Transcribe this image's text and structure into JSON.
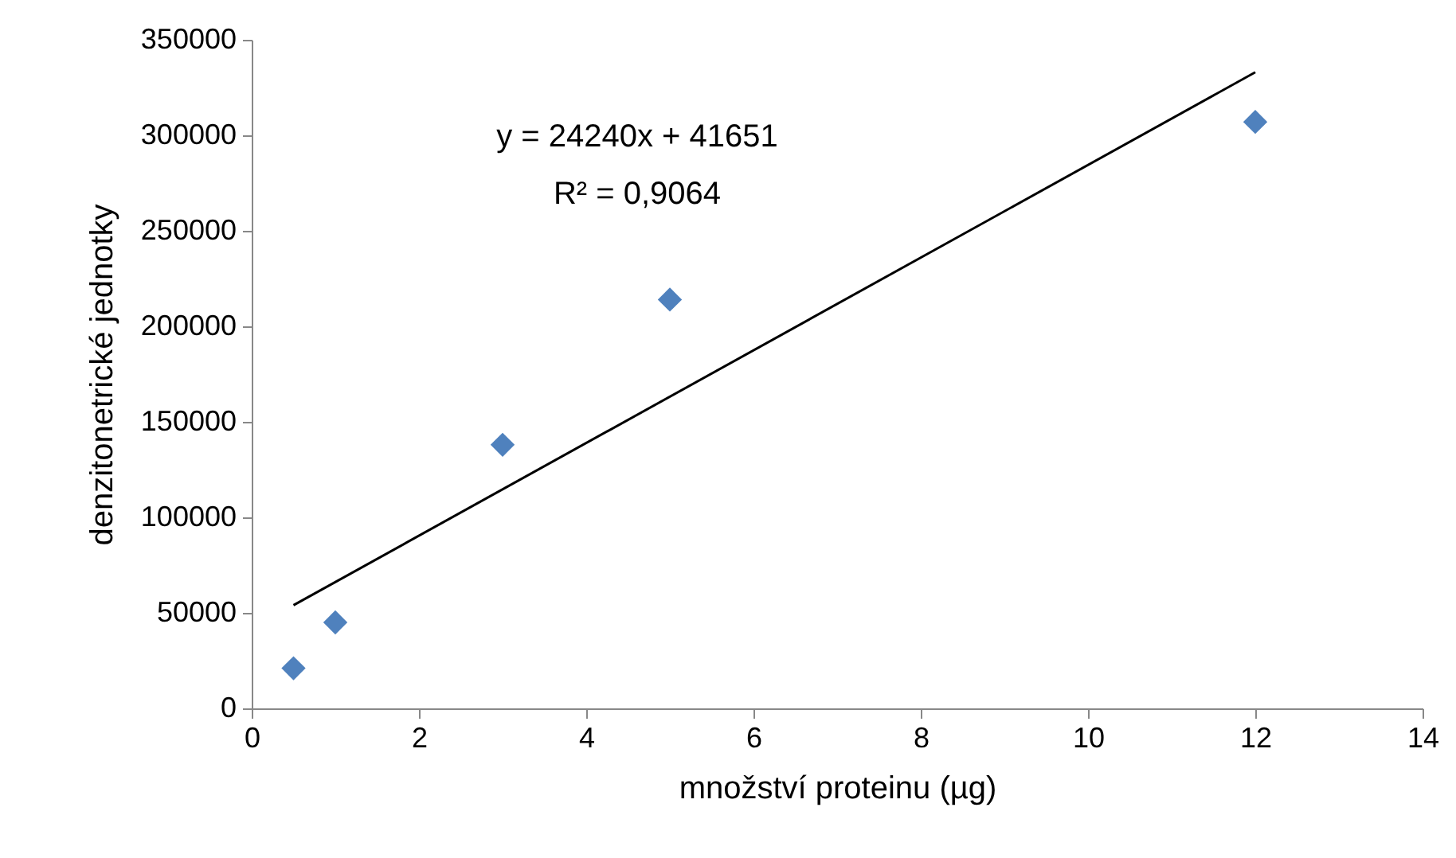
{
  "chart_data": {
    "type": "scatter",
    "xlabel": "množství proteinu (µg)",
    "ylabel": "denzitonetrické jednotky",
    "xlim": [
      0,
      14
    ],
    "xticks": [
      0,
      2,
      4,
      6,
      8,
      10,
      12,
      14
    ],
    "ylim": [
      0,
      350000
    ],
    "yticks": [
      0,
      50000,
      100000,
      150000,
      200000,
      250000,
      300000,
      350000
    ],
    "grid": false,
    "annotations": [
      "y = 24240x + 41651",
      "R² = 0,9064"
    ],
    "series": [
      {
        "color": "#4f81bd",
        "marker": "diamond",
        "x": [
          0.5,
          1,
          3,
          5,
          12
        ],
        "values": [
          21000,
          45000,
          138000,
          214000,
          307000
        ]
      },
      {
        "type": "line",
        "marker": "none",
        "color": "#000000",
        "x": [
          0.5,
          12
        ],
        "values": [
          54000,
          333000
        ]
      }
    ]
  }
}
